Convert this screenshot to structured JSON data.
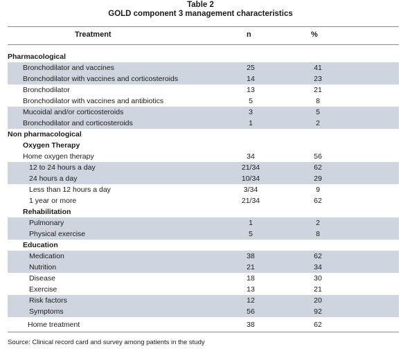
{
  "table_number": "Table 2",
  "table_title": "GOLD component 3 management characteristics",
  "headers": {
    "treatment": "Treatment",
    "n": "n",
    "pct": "%"
  },
  "rows": [
    {
      "label": "Pharmacological",
      "n": "",
      "pct": ""
    },
    {
      "label": "Bronchodilator and vaccines",
      "n": "25",
      "pct": "41"
    },
    {
      "label": "Bronchodilator with vaccines and corticosteroids",
      "n": "14",
      "pct": "23"
    },
    {
      "label": "Bronchodilator",
      "n": "13",
      "pct": "21"
    },
    {
      "label": "Bronchodilator with vaccines and antibiotics",
      "n": "5",
      "pct": "8"
    },
    {
      "label": "Mucoidal and/or corticosteroids",
      "n": "3",
      "pct": "5"
    },
    {
      "label": "Bronchodilator and corticosteroids",
      "n": "1",
      "pct": "2"
    },
    {
      "label": "Non pharmacological",
      "n": "",
      "pct": ""
    },
    {
      "label": "Oxygen Therapy",
      "n": "",
      "pct": ""
    },
    {
      "label": "Home oxygen therapy",
      "n": "34",
      "pct": "56"
    },
    {
      "label": "12 to 24 hours a day",
      "n": "21/34",
      "pct": "62"
    },
    {
      "label": "24 hours a day",
      "n": "10/34",
      "pct": "29"
    },
    {
      "label": "Less than 12 hours a day",
      "n": "3/34",
      "pct": "9"
    },
    {
      "label": "1 year or more",
      "n": "21/34",
      "pct": "62"
    },
    {
      "label": "Rehabilitation",
      "n": "",
      "pct": ""
    },
    {
      "label": "Pulmonary",
      "n": "1",
      "pct": "2"
    },
    {
      "label": "Physical exercise",
      "n": "5",
      "pct": "8"
    },
    {
      "label": "Education",
      "n": "",
      "pct": ""
    },
    {
      "label": "Medication",
      "n": "38",
      "pct": "62"
    },
    {
      "label": "Nutrition",
      "n": "21",
      "pct": "34"
    },
    {
      "label": "Disease",
      "n": "18",
      "pct": "30"
    },
    {
      "label": "Exercise",
      "n": "13",
      "pct": "21"
    },
    {
      "label": "Risk factors",
      "n": "12",
      "pct": "20"
    },
    {
      "label": "Symptoms",
      "n": "56",
      "pct": "92"
    },
    {
      "label": "Home treatment",
      "n": "38",
      "pct": "62"
    }
  ],
  "source": "Source: Clinical record card and survey among patients in the study",
  "colors": {
    "row_shade": "#cfd5de",
    "rule": "#8a8a8a"
  }
}
